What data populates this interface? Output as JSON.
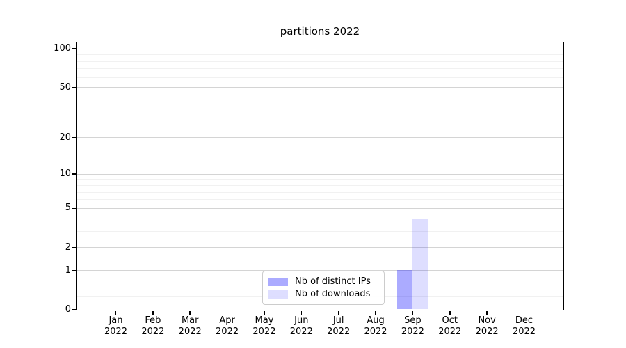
{
  "chart_data": {
    "type": "bar",
    "title": "partitions 2022",
    "categories": [
      "Jan 2022",
      "Feb 2022",
      "Mar 2022",
      "Apr 2022",
      "May 2022",
      "Jun 2022",
      "Jul 2022",
      "Aug 2022",
      "Sep 2022",
      "Oct 2022",
      "Nov 2022",
      "Dec 2022"
    ],
    "series": [
      {
        "name": "Nb of distinct IPs",
        "color": "rgba(0,0,255,0.33)",
        "values": [
          0,
          0,
          0,
          0,
          0,
          0,
          0,
          0,
          1,
          0,
          0,
          0
        ]
      },
      {
        "name": "Nb of downloads",
        "color": "rgba(0,0,255,0.13)",
        "values": [
          0,
          0,
          0,
          0,
          0,
          0,
          0,
          0,
          4,
          0,
          0,
          0
        ]
      }
    ],
    "xlabel": "",
    "ylabel": "",
    "yscale": "log1p",
    "ylim": [
      0,
      112
    ],
    "yticks": [
      0,
      1,
      2,
      5,
      10,
      20,
      50,
      100
    ],
    "minor_yticks": [
      0.25,
      0.5,
      0.75,
      3,
      4,
      6,
      7,
      8,
      9,
      30,
      40,
      60,
      70,
      80,
      90
    ],
    "grid": true,
    "legend_position": "lower center"
  },
  "colors": {
    "major_grid": "#d4d4d4",
    "minor_grid": "#f1f1f1",
    "axis": "#000000",
    "legend_border": "#cccccc",
    "background": "#ffffff"
  }
}
